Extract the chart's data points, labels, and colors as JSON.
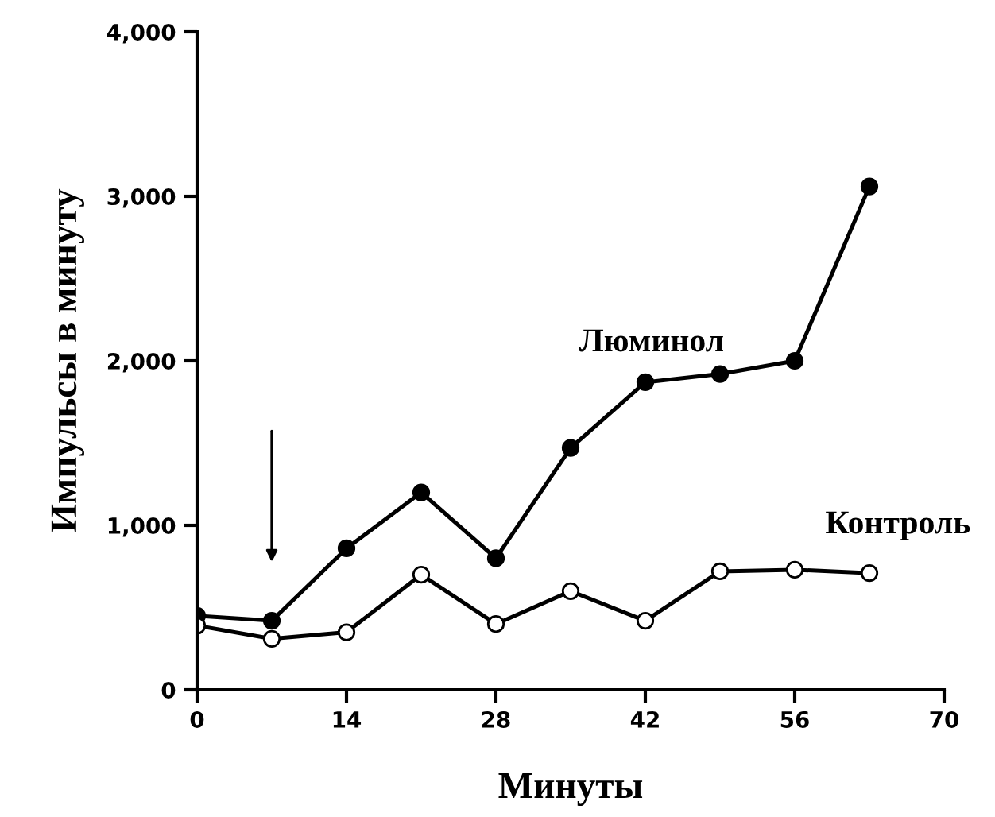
{
  "chart_data": {
    "type": "line",
    "xlabel": "Минуты",
    "ylabel": "Импульсы в минуту",
    "x": [
      0,
      7,
      14,
      21,
      28,
      35,
      42,
      49,
      56,
      63
    ],
    "series": [
      {
        "name": "Люминол",
        "color": "#000000",
        "marker": "circle",
        "values": [
          450,
          420,
          860,
          1200,
          800,
          1470,
          1870,
          1920,
          2000,
          3060
        ]
      },
      {
        "name": "Контроль",
        "color": "#000000",
        "marker": "circle",
        "values": [
          390,
          310,
          350,
          700,
          400,
          600,
          420,
          720,
          730,
          710
        ]
      }
    ],
    "xlim": [
      0,
      70
    ],
    "xticks": [
      0,
      14,
      28,
      42,
      56,
      70
    ],
    "ylim": [
      0,
      4000
    ],
    "yticks": [
      {
        "value": 0,
        "label": "0"
      },
      {
        "value": 1000,
        "label": "1,000"
      },
      {
        "value": 2000,
        "label": "2,000"
      },
      {
        "value": 3000,
        "label": "3,000"
      },
      {
        "value": 4000,
        "label": "4,000"
      }
    ],
    "grid": false,
    "legend": false,
    "line_style": "solid"
  }
}
